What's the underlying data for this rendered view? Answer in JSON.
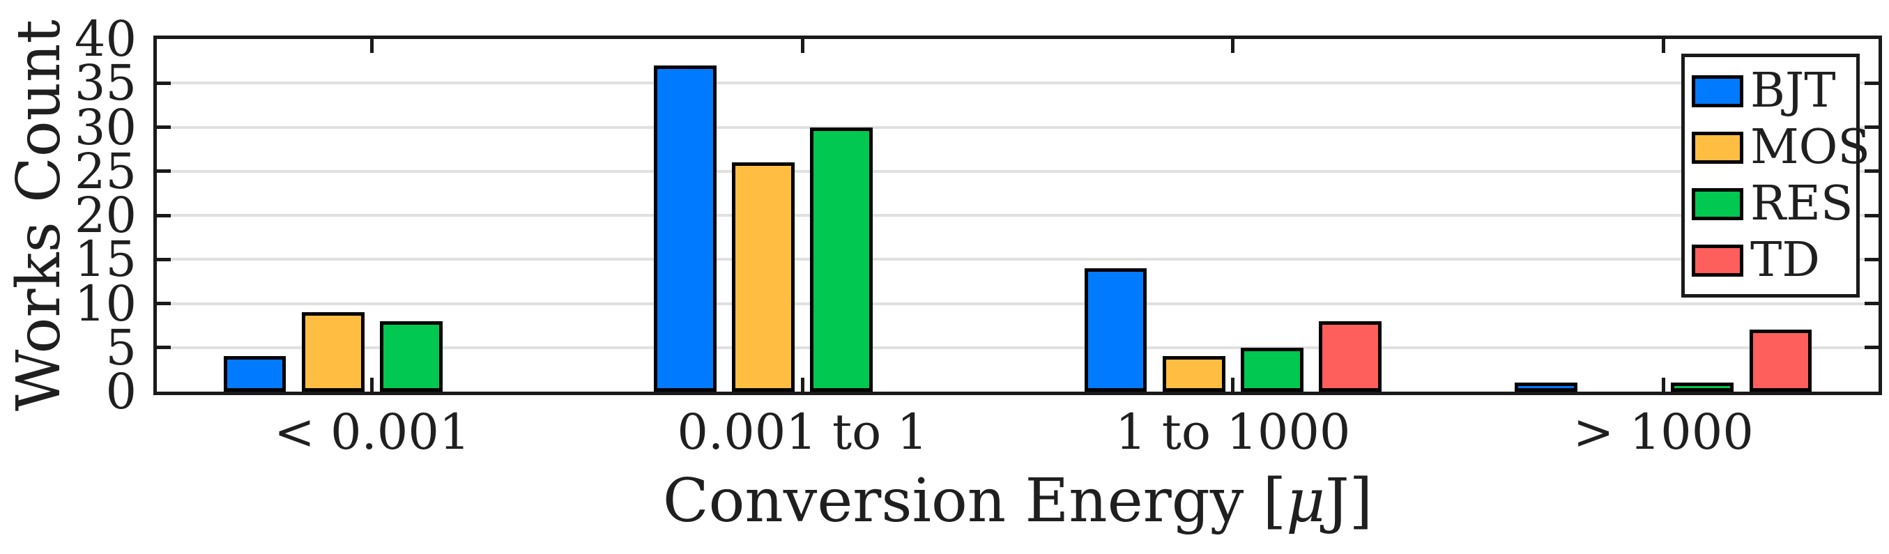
{
  "figure": {
    "background": "#ffffff",
    "text_color": "#1f1f1f",
    "axis_color": "#1a1a1a"
  },
  "chart_data": {
    "type": "bar",
    "title": "",
    "categories": [
      "< 0.001",
      "0.001 to 1",
      "1 to 1000",
      "> 1000"
    ],
    "series": [
      {
        "name": "BJT",
        "color": "#007bff",
        "values": [
          4,
          37,
          14,
          1
        ]
      },
      {
        "name": "MOS",
        "color": "#ffbe42",
        "values": [
          9,
          26,
          4,
          0
        ]
      },
      {
        "name": "RES",
        "color": "#00c850",
        "values": [
          8,
          30,
          5,
          1
        ]
      },
      {
        "name": "TD",
        "color": "#ff5f5c",
        "values": [
          0,
          0,
          8,
          7
        ]
      }
    ],
    "xlabel": "Conversion Energy [μJ]",
    "ylabel": "Works Count",
    "ylim": [
      0,
      40
    ],
    "yticks": [
      0,
      5,
      10,
      15,
      20,
      25,
      30,
      35,
      40
    ],
    "grid": "horizontal",
    "grid_color": "#e0e0e0",
    "bar_edge_color": "#000000",
    "legend_position": "top-right",
    "legend_labels": [
      "BJT",
      "MOS",
      "RES",
      "TD"
    ]
  },
  "xlabel_parts": {
    "prefix": "Conversion Energy [",
    "mu": "μ",
    "suffix": "J]"
  }
}
